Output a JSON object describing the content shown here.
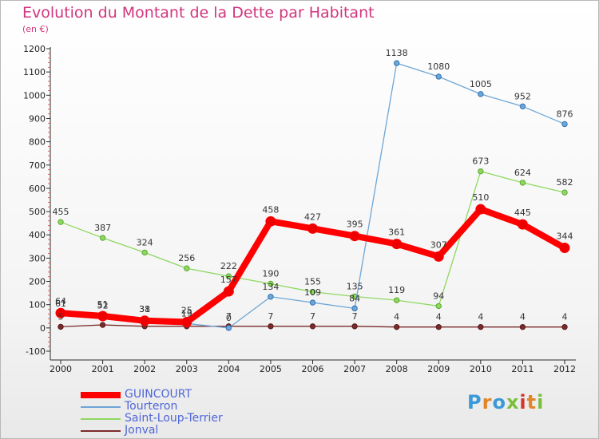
{
  "header": {
    "title": "Evolution du Montant de la Dette par Habitant",
    "subtitle": "(en €)"
  },
  "chart_data": {
    "type": "line",
    "title": "Evolution du Montant de la Dette par Habitant",
    "ylabel": "(en €)",
    "xlabel": "",
    "categories": [
      "2000",
      "2001",
      "2002",
      "2003",
      "2004",
      "2005",
      "2006",
      "2007",
      "2008",
      "2009",
      "2010",
      "2011",
      "2012"
    ],
    "ylim": [
      -100,
      1200
    ],
    "yticks": [
      -100,
      0,
      100,
      200,
      300,
      400,
      500,
      600,
      700,
      800,
      900,
      1000,
      1100,
      1200
    ],
    "grid": false,
    "series": [
      {
        "name": "Jonval",
        "color": "#7a2a2a",
        "values": [
          5,
          13,
          7,
          7,
          7,
          7,
          7,
          7,
          4,
          4,
          4,
          4,
          4
        ],
        "labels": [
          "5",
          "",
          "",
          "",
          "7",
          "7",
          "7",
          "7",
          "4",
          "4",
          "4",
          "4",
          "4"
        ]
      },
      {
        "name": "Saint-Loup-Terrier",
        "color": "#8ed860",
        "values": [
          455,
          387,
          324,
          256,
          222,
          190,
          155,
          135,
          119,
          94,
          673,
          624,
          582
        ],
        "labels": [
          "455",
          "387",
          "324",
          "256",
          "222",
          "190",
          "155",
          "135",
          "119",
          "94",
          "673",
          "624",
          "582"
        ]
      },
      {
        "name": "Tourteron",
        "color": "#6ea6d6",
        "values": [
          61,
          52,
          38,
          19,
          0,
          134,
          109,
          84,
          1138,
          1080,
          1005,
          952,
          876
        ],
        "labels": [
          "61",
          "52",
          "38",
          "19",
          "0",
          "134",
          "109",
          "84",
          "1138",
          "1080",
          "1005",
          "952",
          "876"
        ]
      },
      {
        "name": "GUINCOURT",
        "color": "#ff0000",
        "values": [
          64,
          51,
          31,
          25,
          157,
          458,
          427,
          395,
          361,
          307,
          510,
          445,
          344
        ],
        "labels": [
          "64",
          "51",
          "31",
          "25",
          "157",
          "458",
          "427",
          "395",
          "361",
          "307",
          "510",
          "445",
          "344"
        ]
      }
    ],
    "legend": {
      "position": "bottom-left",
      "entries": [
        "GUINCOURT",
        "Tourteron",
        "Saint-Loup-Terrier",
        "Jonval"
      ]
    }
  },
  "logo": {
    "text": "Proxiti",
    "letters": [
      "P",
      "r",
      "o",
      "x",
      "i",
      "t",
      "i"
    ]
  }
}
